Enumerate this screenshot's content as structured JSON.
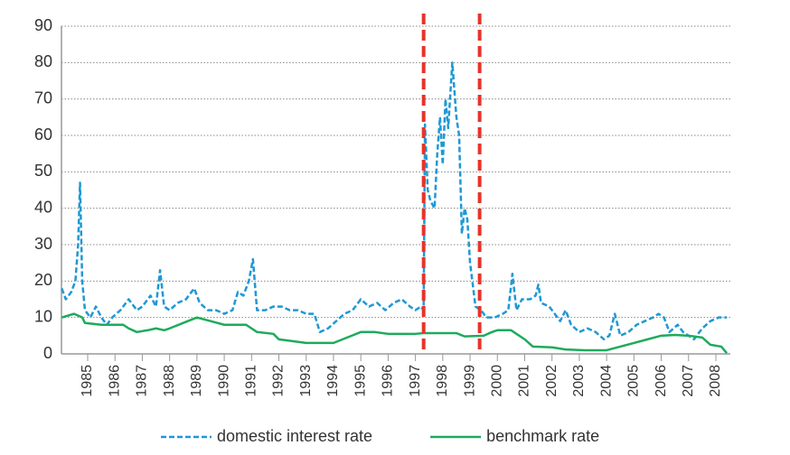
{
  "chart_data": {
    "type": "line",
    "xlim": [
      1984.04,
      2008.53
    ],
    "xticks": [
      1985,
      1986,
      1987,
      1988,
      1989,
      1990,
      1991,
      1992,
      1993,
      1994,
      1995,
      1996,
      1997,
      1998,
      1999,
      2000,
      2001,
      2002,
      2003,
      2004,
      2005,
      2006,
      2007,
      2008
    ],
    "ylim": [
      0,
      90
    ],
    "yticks": [
      0,
      10,
      20,
      30,
      40,
      50,
      60,
      70,
      80,
      90
    ],
    "grid": true,
    "legend": "bottom",
    "vlines": {
      "color": "#e8332a",
      "x": [
        1997.3,
        1999.35
      ]
    },
    "series": [
      {
        "name": "domestic interest rate",
        "color": "#1f98d4",
        "dash": true,
        "x": [
          1984.05,
          1984.2,
          1984.4,
          1984.55,
          1984.65,
          1984.72,
          1984.8,
          1984.9,
          1985.1,
          1985.3,
          1985.5,
          1985.7,
          1985.9,
          1986.2,
          1986.5,
          1986.8,
          1987.0,
          1987.3,
          1987.5,
          1987.65,
          1987.8,
          1988.0,
          1988.3,
          1988.6,
          1988.9,
          1989.1,
          1989.4,
          1989.7,
          1990.0,
          1990.3,
          1990.5,
          1990.7,
          1990.9,
          1991.05,
          1991.2,
          1991.5,
          1991.8,
          1992.1,
          1992.4,
          1992.7,
          1993.0,
          1993.3,
          1993.5,
          1993.8,
          1994.1,
          1994.4,
          1994.7,
          1995.0,
          1995.3,
          1995.6,
          1995.9,
          1996.2,
          1996.5,
          1996.8,
          1997.0,
          1997.2,
          1997.3,
          1997.35,
          1997.45,
          1997.55,
          1997.7,
          1997.8,
          1997.9,
          1998.0,
          1998.1,
          1998.2,
          1998.35,
          1998.5,
          1998.6,
          1998.7,
          1998.8,
          1998.9,
          1999.0,
          1999.2,
          1999.4,
          1999.6,
          1999.9,
          2000.2,
          2000.4,
          2000.55,
          2000.7,
          2000.9,
          2001.2,
          2001.4,
          2001.5,
          2001.6,
          2001.9,
          2002.1,
          2002.3,
          2002.5,
          2002.7,
          2003.0,
          2003.3,
          2003.6,
          2003.9,
          2004.1,
          2004.3,
          2004.5,
          2004.8,
          2005.1,
          2005.4,
          2005.7,
          2005.9,
          2006.1,
          2006.3,
          2006.6,
          2006.8,
          2007.0,
          2007.2,
          2007.5,
          2007.8,
          2008.1,
          2008.4
        ],
        "values": [
          18,
          15,
          17,
          20,
          30,
          47,
          20,
          12,
          10,
          13,
          10,
          8,
          10,
          12,
          15,
          12,
          13,
          16,
          13,
          23,
          13,
          12,
          14,
          15,
          18,
          14,
          12,
          12,
          11,
          12,
          17,
          16,
          20,
          26,
          12,
          12,
          13,
          13,
          12,
          12,
          11,
          11,
          6,
          7,
          9,
          11,
          12,
          15,
          13,
          14,
          12,
          14,
          15,
          13,
          12,
          13,
          12,
          63,
          45,
          42,
          40,
          55,
          65,
          52,
          70,
          62,
          80,
          65,
          60,
          33,
          40,
          37,
          25,
          13,
          12,
          10,
          10,
          11,
          12,
          22,
          12,
          15,
          15,
          16,
          19,
          14,
          13,
          11,
          9,
          12,
          8,
          6,
          7,
          6,
          4,
          5,
          11,
          5,
          6,
          8,
          9,
          10,
          11,
          10,
          6,
          8,
          6,
          5,
          4,
          7,
          9,
          10,
          10
        ]
      },
      {
        "name": "benchmark rate",
        "color": "#1faa5c",
        "dash": false,
        "x": [
          1984.05,
          1984.5,
          1984.8,
          1984.9,
          1985.5,
          1986.3,
          1986.5,
          1986.8,
          1987.2,
          1987.5,
          1987.8,
          1988.0,
          1988.5,
          1989.0,
          1989.5,
          1990.0,
          1990.8,
          1991.2,
          1991.8,
          1992.0,
          1992.5,
          1993.0,
          1994.0,
          1994.5,
          1995.0,
          1995.5,
          1996.0,
          1997.0,
          1997.3,
          1998.5,
          1998.8,
          1999.5,
          1999.8,
          2000.0,
          2000.5,
          2001.0,
          2001.3,
          2002.0,
          2002.5,
          2003.2,
          2004.0,
          2004.5,
          2005.0,
          2005.5,
          2006.0,
          2006.5,
          2007.0,
          2007.5,
          2007.8,
          2008.2,
          2008.4
        ],
        "values": [
          10,
          11,
          10,
          8.5,
          8,
          8,
          7,
          6,
          6.5,
          7,
          6.5,
          7,
          8.5,
          10,
          9,
          8,
          8,
          6,
          5.5,
          4,
          3.5,
          3,
          3,
          4.5,
          6,
          6,
          5.5,
          5.5,
          5.7,
          5.7,
          4.8,
          5,
          6,
          6.5,
          6.5,
          4,
          2,
          1.8,
          1.2,
          1,
          1,
          2,
          3,
          4,
          5,
          5.2,
          5,
          4.5,
          2.5,
          2,
          0.2
        ]
      }
    ]
  }
}
